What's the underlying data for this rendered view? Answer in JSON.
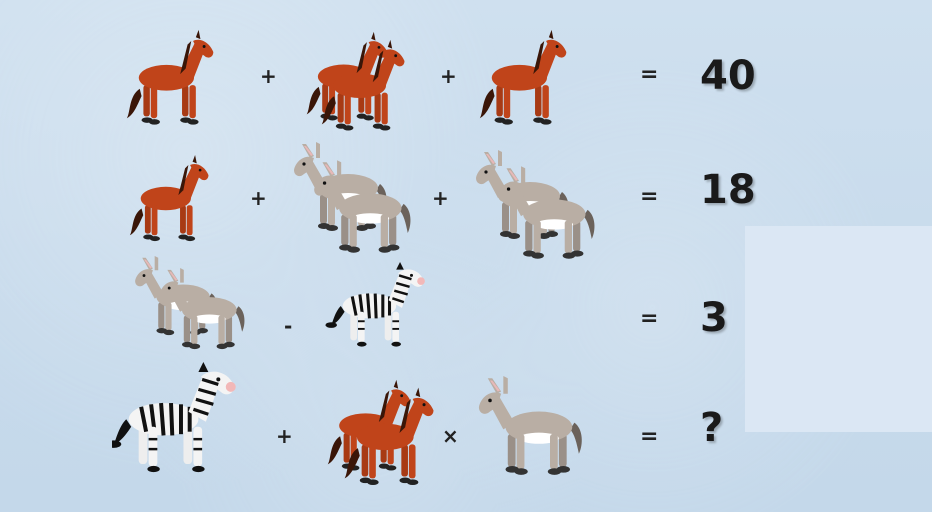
{
  "puzzle": {
    "rows": [
      {
        "items": [
          "horse",
          "horse-pair",
          "horse"
        ],
        "operators": [
          "+",
          "+"
        ],
        "equals": "=",
        "result": "40"
      },
      {
        "items": [
          "horse",
          "donkey-pair",
          "donkey-pair"
        ],
        "operators": [
          "+",
          "+"
        ],
        "equals": "=",
        "result": "18"
      },
      {
        "items": [
          "donkey-pair",
          "zebra"
        ],
        "operators": [
          "-"
        ],
        "equals": "=",
        "result": "3"
      },
      {
        "items": [
          "zebra",
          "horse-pair",
          "donkey"
        ],
        "operators": [
          "+",
          "×"
        ],
        "equals": "=",
        "result": "?"
      }
    ]
  },
  "colors": {
    "background": "#c9dcec",
    "horse": "#c0441a",
    "donkey": "#b9aea4",
    "zebra_stripe": "#111111",
    "text": "#1a1a1a"
  }
}
